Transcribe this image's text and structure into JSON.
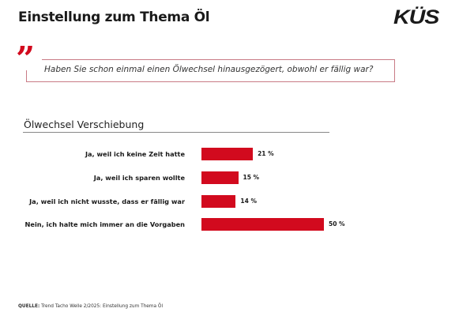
{
  "header": {
    "title": "Einstellung zum Thema Öl",
    "logo": "KÜS"
  },
  "question": {
    "quote_mark": "”",
    "text": "Haben Sie schon einmal einen Ölwechsel hinausgezögert, obwohl er fällig war?"
  },
  "chart_data": {
    "type": "bar",
    "orientation": "horizontal",
    "title": "Ölwechsel Verschiebung",
    "categories": [
      "Ja, weil ich keine Zeit hatte",
      "Ja, weil ich sparen wollte",
      "Ja, weil ich nicht wusste, dass er fällig war",
      "Nein, ich halte mich immer an die Vorgaben"
    ],
    "values": [
      21,
      15,
      14,
      50
    ],
    "value_labels": [
      "21 %",
      "15 %",
      "14 %",
      "50 %"
    ],
    "unit": "%",
    "color": "#d20a1e",
    "grid": false
  },
  "source": {
    "label": "QUELLE:",
    "text": " Trend Tacho Welle 2/2025: Einstellung zum Thema Öl"
  }
}
